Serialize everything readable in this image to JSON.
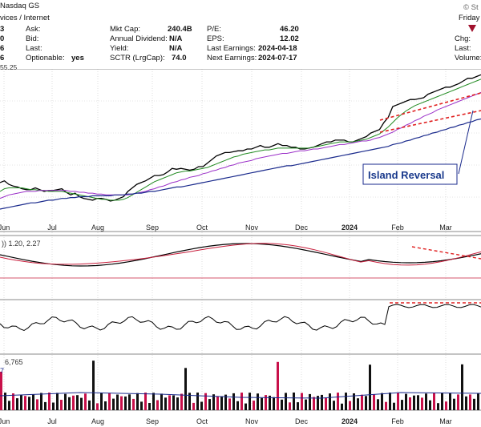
{
  "header": {
    "exchange": "Nasdaq GS",
    "corner_date": "Friday",
    "corner_site": "© St",
    "industry": "vices / Internet",
    "price_fragment": "55.25",
    "row1": {
      "ask_label": "Ask:",
      "mktcap_label": "Mkt Cap:",
      "mktcap": "240.4B",
      "pe_label": "P/E:",
      "pe": "46.20",
      "chg_label": "Chg:"
    },
    "row2": {
      "bid_label": "Bid:",
      "div_label": "Annual Dividend:",
      "div": "N/A",
      "eps_label": "EPS:",
      "eps": "12.02"
    },
    "row3": {
      "last_label": "Last:",
      "yield_label": "Yield:",
      "yield": "N/A",
      "last_earn_label": "Last Earnings:",
      "last_earn": "2024-04-18",
      "right_last_label": "Last:"
    },
    "row4": {
      "opt_label": "Optionable:",
      "opt": "yes",
      "sctr_label": "SCTR (LrgCap):",
      "sctr": "74.0",
      "next_earn_label": "Next Earnings:",
      "next_earn": "2024-07-17",
      "volume_label": "Volume:"
    },
    "left_digits": [
      "3",
      "0",
      "6",
      "6"
    ]
  },
  "annotations": {
    "island_reversal": "Island Reversal",
    "ppo_label": ")) 1.20, 2.27",
    "vol_label1": "6,765",
    "vol_label2": "7"
  },
  "colors": {
    "price": "#000000",
    "ma_fast": "#228b22",
    "ma_mid": "#9b30c8",
    "ma_slow": "#1a2a8c",
    "signal": "#c81e3c",
    "trend": "#e02020",
    "vol_up": "#111111",
    "vol_down": "#c8104a",
    "panel_bg": "#ffffff",
    "grid": "#c8c8c8"
  },
  "chart_data": {
    "type": "line",
    "x_ticks": [
      "Jun",
      "Jul",
      "Aug",
      "Sep",
      "Oct",
      "Nov",
      "Dec",
      "2024",
      "Feb",
      "Mar"
    ],
    "series": [
      {
        "values": [
          40,
          42,
          38,
          36,
          35,
          33,
          32,
          32,
          34,
          32,
          30,
          31,
          31,
          32,
          33,
          29,
          26,
          28,
          24,
          22,
          21,
          20,
          22,
          22,
          21,
          19,
          20,
          22,
          24,
          30,
          34,
          38,
          40,
          42,
          45,
          48,
          48,
          49,
          52,
          56,
          55,
          56,
          55,
          54,
          55,
          58,
          58,
          62,
          66,
          70,
          72,
          74,
          74,
          75,
          76,
          76,
          78,
          78,
          80,
          82,
          80,
          80,
          82,
          84,
          82,
          82,
          80,
          80,
          78,
          78,
          79,
          80,
          82,
          84,
          86,
          86,
          88,
          88,
          88,
          86,
          86,
          88,
          90,
          92,
          96,
          98,
          100,
          108,
          114,
          126,
          128,
          130,
          132,
          134,
          134,
          135,
          136,
          140,
          142,
          144,
          146,
          148,
          148,
          150,
          152,
          155,
          158,
          158,
          160,
          162
        ]
      },
      {
        "values": [
          30,
          33,
          34,
          34,
          34,
          34,
          33,
          32,
          32,
          31,
          31,
          30,
          30,
          30,
          30,
          29,
          28,
          27,
          26,
          25,
          24,
          23,
          22,
          21,
          21,
          20,
          20,
          20,
          21,
          23,
          26,
          29,
          32,
          35,
          38,
          41,
          43,
          45,
          47,
          49,
          51,
          52,
          53,
          53,
          54,
          55,
          56,
          57,
          59,
          61,
          63,
          65,
          67,
          69,
          70,
          72,
          73,
          74,
          75,
          76,
          77,
          77,
          78,
          79,
          79,
          79,
          79,
          79,
          79,
          79,
          79,
          80,
          81,
          82,
          83,
          84,
          85,
          86,
          86,
          86,
          86,
          87,
          88,
          89,
          91,
          93,
          95,
          99,
          103,
          108,
          113,
          117,
          121,
          124,
          127,
          129,
          131,
          133,
          135,
          137,
          139,
          141,
          143,
          145,
          147,
          149,
          151,
          153,
          155,
          157
        ]
      },
      {
        "values": [
          22,
          24,
          26,
          27,
          28,
          29,
          30,
          30,
          30,
          31,
          31,
          31,
          31,
          31,
          31,
          31,
          30,
          30,
          29,
          29,
          28,
          28,
          27,
          27,
          26,
          26,
          26,
          26,
          26,
          26,
          27,
          28,
          29,
          30,
          32,
          33,
          35,
          36,
          38,
          40,
          41,
          43,
          44,
          46,
          47,
          48,
          50,
          51,
          53,
          54,
          56,
          57,
          59,
          60,
          62,
          63,
          64,
          65,
          67,
          68,
          69,
          70,
          71,
          72,
          73,
          73,
          74,
          75,
          76,
          76,
          77,
          78,
          78,
          79,
          80,
          81,
          82,
          83,
          83,
          84,
          85,
          86,
          87,
          87,
          88,
          90,
          91,
          93,
          95,
          97,
          100,
          102,
          105,
          107,
          110,
          112,
          115,
          117,
          119,
          122,
          124,
          126,
          128,
          130,
          132,
          134,
          136,
          138,
          140,
          142
        ]
      },
      {
        "values": [
          10,
          11,
          12,
          13,
          14,
          15,
          16,
          17,
          17,
          18,
          19,
          20,
          20,
          21,
          22,
          22,
          23,
          23,
          24,
          24,
          24,
          25,
          25,
          25,
          25,
          25,
          26,
          26,
          26,
          27,
          27,
          28,
          28,
          29,
          30,
          30,
          31,
          32,
          33,
          34,
          35,
          35,
          36,
          37,
          38,
          39,
          40,
          41,
          42,
          43,
          44,
          45,
          46,
          47,
          48,
          49,
          50,
          51,
          52,
          53,
          54,
          55,
          56,
          57,
          58,
          59,
          59,
          60,
          61,
          62,
          63,
          64,
          65,
          66,
          67,
          68,
          69,
          70,
          71,
          72,
          73,
          74,
          75,
          76,
          77,
          78,
          79,
          80,
          81,
          83,
          84,
          85,
          87,
          88,
          90,
          91,
          93,
          94,
          96,
          97,
          99,
          100,
          102,
          103,
          105,
          106,
          108,
          109,
          111,
          112
        ]
      }
    ]
  }
}
